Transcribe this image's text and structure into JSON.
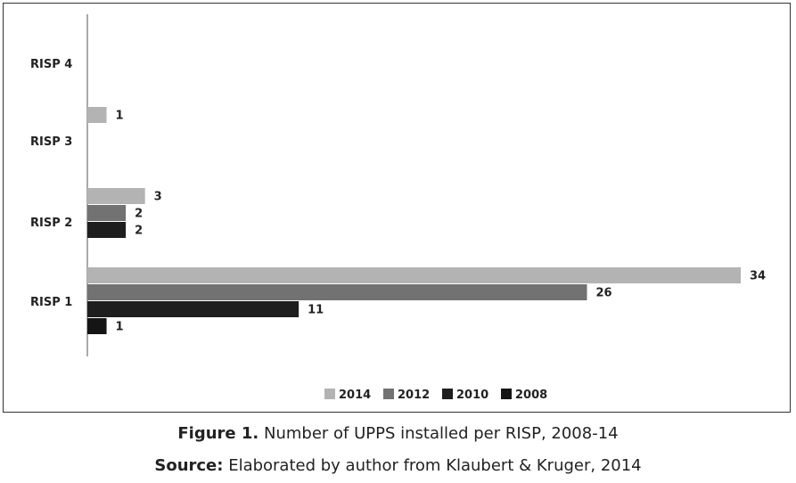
{
  "chart_data": {
    "type": "bar",
    "orientation": "horizontal",
    "categories": [
      "RISP 1",
      "RISP 2",
      "RISP 3",
      "RISP 4"
    ],
    "series": [
      {
        "name": "2014",
        "values": [
          34,
          3,
          1,
          0
        ],
        "color": "#b3b3b3"
      },
      {
        "name": "2012",
        "values": [
          26,
          2,
          null,
          null
        ],
        "color": "#727272"
      },
      {
        "name": "2010",
        "values": [
          11,
          2,
          null,
          null
        ],
        "color": "#1e1e1e"
      },
      {
        "name": "2008",
        "values": [
          1,
          null,
          null,
          null
        ],
        "color": "#151515"
      }
    ],
    "xlim": [
      0,
      34
    ],
    "grid": false,
    "legend_position": "bottom"
  },
  "caption": {
    "figure_prefix": "Figure 1.",
    "figure_text": " Number of UPPS installed per RISP, 2008-14",
    "source_prefix": "Source:",
    "source_text": " Elaborated by author from Klaubert & Kruger, 2014"
  }
}
